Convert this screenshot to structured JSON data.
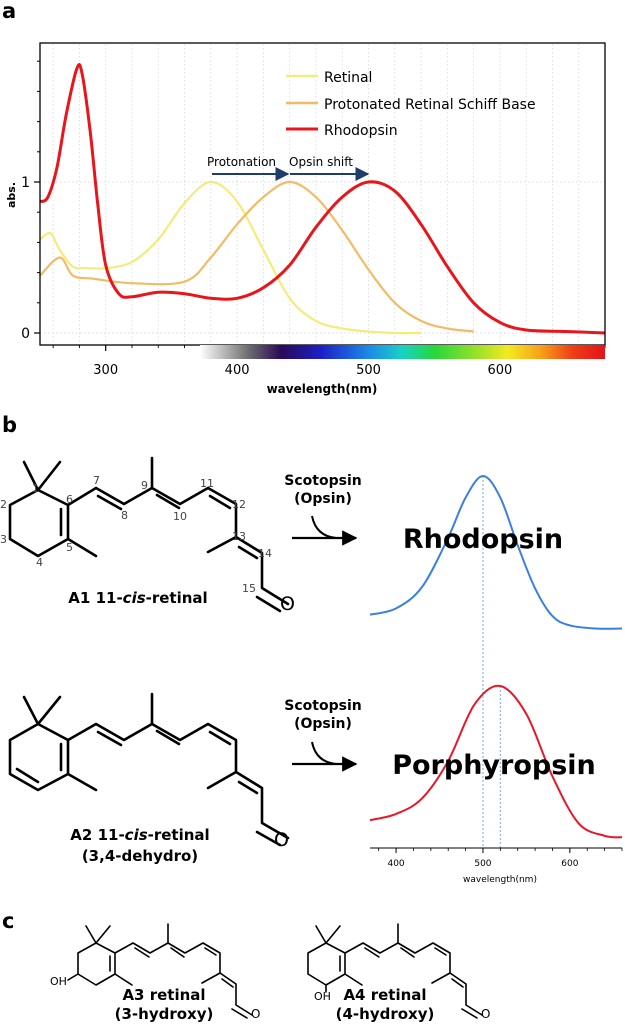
{
  "panels": {
    "a": "a",
    "b": "b",
    "c": "c"
  },
  "panel_a": {
    "y_label": "abs.",
    "x_label": "wavelength(nm)",
    "y_ticks": [
      "0",
      "1"
    ],
    "x_ticks": [
      "300",
      "400",
      "500",
      "600"
    ],
    "legend": [
      "Retinal",
      "Protonated Retinal Schiff Base",
      "Rhodopsin"
    ],
    "arrow_protonation": "Protonation",
    "arrow_opsin_shift": "Opsin shift",
    "colors": {
      "retinal": "#f3ec7a",
      "protonated": "#f0bd66",
      "rhodopsin": "#e8161c",
      "arrow": "#1f3d6b"
    }
  },
  "panel_b": {
    "a1_name_prefix": "A1 11-",
    "a1_name_italic": "cis",
    "a1_name_suffix": "-retinal",
    "a2_name_prefix": "A2 11-",
    "a2_name_italic": "cis",
    "a2_name_suffix": "-retinal",
    "a2_subtitle": "(3,4-dehydro)",
    "atom_numbers": [
      "1",
      "2",
      "3",
      "4",
      "5",
      "6",
      "7",
      "8",
      "9",
      "10",
      "11",
      "12",
      "13",
      "14",
      "15"
    ],
    "oxygen": "O",
    "enzyme_line1": "Scotopsin",
    "enzyme_line2": "(Opsin)",
    "product_1": "Rhodopsin",
    "product_2": "Porphyropsin",
    "mini_x_ticks": [
      "400",
      "500",
      "600"
    ],
    "mini_x_label": "wavelength(nm)",
    "colors": {
      "rhodopsin_curve": "#3a7fe0",
      "porphyropsin_curve": "#e8162a",
      "guide": "#8fb3d9"
    }
  },
  "panel_c": {
    "a3_name": "A3 retinal",
    "a3_subtitle": "(3-hydroxy)",
    "a4_name": "A4 retinal",
    "a4_subtitle": "(4-hydroxy)",
    "hydroxyl": "OH",
    "oxygen": "O"
  },
  "chart_data": [
    {
      "type": "line",
      "xlabel": "wavelength(nm)",
      "ylabel": "abs.",
      "xlim": [
        250,
        680
      ],
      "ylim": [
        0,
        1.9
      ],
      "grid": true,
      "legend_position": "top-right",
      "series": [
        {
          "name": "Retinal",
          "x": [
            250,
            258,
            265,
            275,
            285,
            300,
            320,
            340,
            360,
            380,
            400,
            420,
            440,
            460,
            480,
            500,
            520,
            540
          ],
          "y": [
            0.62,
            0.66,
            0.55,
            0.44,
            0.43,
            0.43,
            0.47,
            0.62,
            0.86,
            1.0,
            0.87,
            0.55,
            0.23,
            0.08,
            0.03,
            0.01,
            0.0,
            0.0
          ]
        },
        {
          "name": "Protonated Retinal Schiff Base",
          "x": [
            250,
            265,
            275,
            290,
            320,
            360,
            380,
            400,
            420,
            440,
            460,
            480,
            500,
            520,
            540,
            560,
            580
          ],
          "y": [
            0.38,
            0.5,
            0.38,
            0.36,
            0.33,
            0.34,
            0.5,
            0.72,
            0.9,
            1.0,
            0.9,
            0.68,
            0.42,
            0.2,
            0.08,
            0.03,
            0.01
          ]
        },
        {
          "name": "Rhodopsin",
          "x": [
            250,
            256,
            263,
            270,
            278,
            282,
            288,
            294,
            300,
            310,
            320,
            340,
            360,
            380,
            400,
            420,
            440,
            460,
            480,
            500,
            520,
            540,
            560,
            580,
            600,
            620,
            650,
            680
          ],
          "y": [
            0.87,
            0.9,
            1.1,
            1.45,
            1.75,
            1.72,
            1.35,
            0.85,
            0.45,
            0.26,
            0.24,
            0.27,
            0.26,
            0.23,
            0.23,
            0.3,
            0.45,
            0.7,
            0.9,
            1.0,
            0.94,
            0.72,
            0.44,
            0.2,
            0.07,
            0.02,
            0.01,
            0.0
          ]
        }
      ]
    },
    {
      "type": "line",
      "xlabel": "",
      "ylabel": "",
      "xlim": [
        370,
        660
      ],
      "series": [
        {
          "name": "Rhodopsin",
          "x": [
            370,
            400,
            430,
            460,
            480,
            500,
            520,
            540,
            560,
            580,
            600,
            630,
            660
          ],
          "y": [
            0.1,
            0.14,
            0.28,
            0.6,
            0.86,
            1.0,
            0.86,
            0.55,
            0.27,
            0.09,
            0.03,
            0.01,
            0.01
          ]
        }
      ]
    },
    {
      "type": "line",
      "xlabel": "wavelength(nm)",
      "ylabel": "",
      "xlim": [
        370,
        660
      ],
      "series": [
        {
          "name": "Porphyropsin",
          "x": [
            370,
            400,
            430,
            460,
            490,
            520,
            550,
            580,
            610,
            640,
            660
          ],
          "y": [
            0.14,
            0.18,
            0.28,
            0.52,
            0.88,
            1.0,
            0.82,
            0.42,
            0.12,
            0.04,
            0.03
          ]
        }
      ]
    }
  ]
}
